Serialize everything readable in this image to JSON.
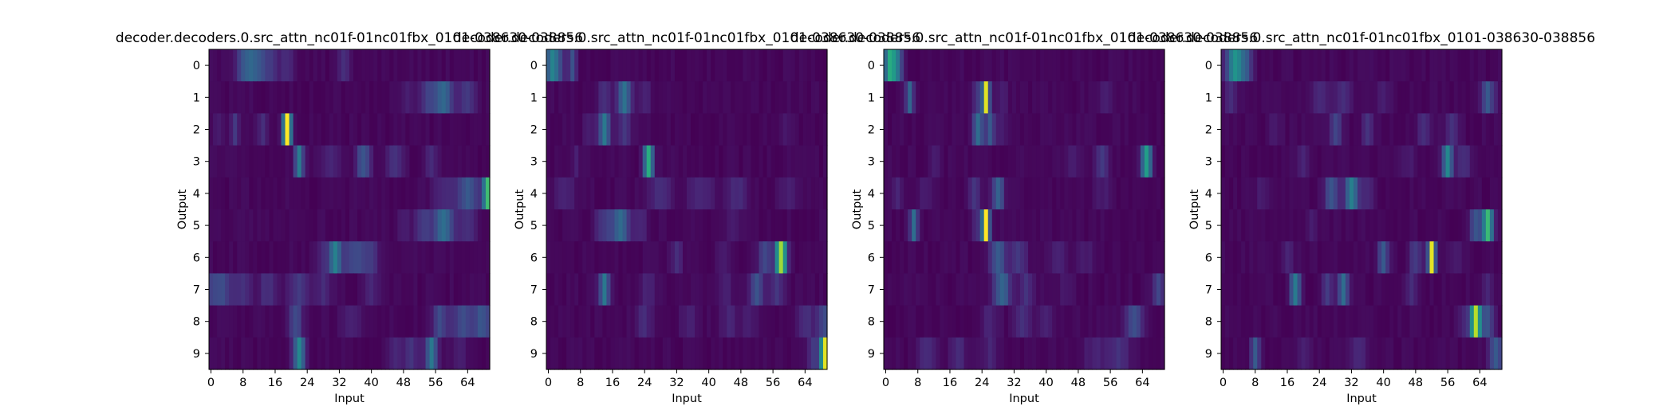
{
  "chart_data": [
    {
      "type": "heatmap",
      "title": "decoder.decoders.0.src_attn_nc01f-01nc01fbx_0101-038630-038856",
      "xlabel": "Input",
      "ylabel": "Output",
      "x_ticks": [
        "0",
        "8",
        "16",
        "24",
        "32",
        "40",
        "48",
        "56",
        "64"
      ],
      "y_ticks": [
        "0",
        "1",
        "2",
        "3",
        "4",
        "5",
        "6",
        "7",
        "8",
        "9"
      ],
      "n_inputs": 70,
      "colormap": "viridis",
      "value_range": [
        0,
        1
      ],
      "rows": [
        {
          "peaks": [
            [
              9,
              0.28,
              1.8
            ],
            [
              12,
              0.18,
              1.5
            ],
            [
              15,
              0.12,
              1.5
            ],
            [
              19,
              0.1,
              1.2
            ],
            [
              33,
              0.1,
              1.2
            ]
          ]
        },
        {
          "peaks": [
            [
              58,
              0.32,
              1.6
            ],
            [
              54,
              0.15,
              1.5
            ],
            [
              64,
              0.15,
              1.5
            ],
            [
              49,
              0.08,
              1.2
            ]
          ]
        },
        {
          "peaks": [
            [
              19,
              1.0,
              0.7
            ],
            [
              6,
              0.15,
              0.8
            ],
            [
              13,
              0.1,
              1.0
            ],
            [
              2,
              0.06,
              1.0
            ]
          ]
        },
        {
          "peaks": [
            [
              22,
              0.38,
              0.8
            ],
            [
              38,
              0.25,
              1.2
            ],
            [
              46,
              0.12,
              1.5
            ],
            [
              55,
              0.12,
              1.0
            ],
            [
              30,
              0.08,
              1.5
            ]
          ]
        },
        {
          "peaks": [
            [
              69,
              0.65,
              0.8
            ],
            [
              64,
              0.25,
              2.2
            ],
            [
              58,
              0.08,
              2.0
            ]
          ]
        },
        {
          "peaks": [
            [
              58,
              0.35,
              1.8
            ],
            [
              53,
              0.15,
              1.5
            ],
            [
              64,
              0.12,
              1.5
            ],
            [
              48,
              0.06,
              1.2
            ]
          ]
        },
        {
          "peaks": [
            [
              31,
              0.4,
              1.2
            ],
            [
              36,
              0.2,
              2.0
            ],
            [
              40,
              0.12,
              1.5
            ],
            [
              28,
              0.08,
              1.0
            ]
          ]
        },
        {
          "peaks": [
            [
              2,
              0.22,
              2.5
            ],
            [
              8,
              0.12,
              1.5
            ],
            [
              14,
              0.12,
              1.5
            ],
            [
              22,
              0.15,
              2.0
            ],
            [
              28,
              0.1,
              1.5
            ],
            [
              40,
              0.08,
              1.5
            ]
          ]
        },
        {
          "peaks": [
            [
              21,
              0.22,
              1.2
            ],
            [
              57,
              0.2,
              1.2
            ],
            [
              63,
              0.2,
              2.5
            ],
            [
              68,
              0.22,
              1.5
            ],
            [
              35,
              0.06,
              2.0
            ]
          ]
        },
        {
          "peaks": [
            [
              22,
              0.45,
              1.0
            ],
            [
              55,
              0.38,
              1.0
            ],
            [
              50,
              0.12,
              1.5
            ],
            [
              46,
              0.08,
              1.2
            ],
            [
              62,
              0.06,
              1.5
            ]
          ]
        }
      ]
    },
    {
      "type": "heatmap",
      "title": "decoder.decoders.0.src_attn_nc01f-01nc01fbx_0101-038630-038856",
      "xlabel": "Input",
      "ylabel": "Output",
      "x_ticks": [
        "0",
        "8",
        "16",
        "24",
        "32",
        "40",
        "48",
        "56",
        "64"
      ],
      "y_ticks": [
        "0",
        "1",
        "2",
        "3",
        "4",
        "5",
        "6",
        "7",
        "8",
        "9"
      ],
      "n_inputs": 70,
      "colormap": "viridis",
      "value_range": [
        0,
        1
      ],
      "rows": [
        {
          "peaks": [
            [
              1,
              0.4,
              1.2
            ],
            [
              6,
              0.22,
              0.7
            ],
            [
              3,
              0.12,
              1.0
            ]
          ]
        },
        {
          "peaks": [
            [
              19,
              0.35,
              1.2
            ],
            [
              14,
              0.12,
              1.2
            ],
            [
              24,
              0.08,
              1.2
            ]
          ]
        },
        {
          "peaks": [
            [
              14,
              0.38,
              1.0
            ],
            [
              19,
              0.15,
              1.2
            ],
            [
              10,
              0.06,
              1.0
            ],
            [
              59,
              0.05,
              1.0
            ]
          ]
        },
        {
          "peaks": [
            [
              25,
              0.62,
              0.8
            ],
            [
              7,
              0.06,
              0.8
            ]
          ]
        },
        {
          "peaks": [
            [
              28,
              0.12,
              2.0
            ],
            [
              47,
              0.1,
              2.0
            ],
            [
              4,
              0.08,
              2.0
            ],
            [
              38,
              0.08,
              2.5
            ],
            [
              60,
              0.08,
              1.5
            ]
          ]
        },
        {
          "peaks": [
            [
              18,
              0.32,
              1.5
            ],
            [
              14,
              0.15,
              1.5
            ],
            [
              23,
              0.1,
              1.2
            ],
            [
              46,
              0.06,
              1.5
            ]
          ]
        },
        {
          "peaks": [
            [
              58,
              0.85,
              0.9
            ],
            [
              54,
              0.2,
              1.2
            ],
            [
              32,
              0.12,
              1.0
            ],
            [
              44,
              0.06,
              1.2
            ]
          ]
        },
        {
          "peaks": [
            [
              14,
              0.38,
              0.9
            ],
            [
              52,
              0.25,
              1.2
            ],
            [
              57,
              0.15,
              1.2
            ],
            [
              25,
              0.08,
              1.5
            ],
            [
              44,
              0.08,
              1.2
            ]
          ]
        },
        {
          "peaks": [
            [
              69,
              0.22,
              1.5
            ],
            [
              64,
              0.12,
              1.5
            ],
            [
              24,
              0.1,
              1.5
            ],
            [
              35,
              0.08,
              1.5
            ],
            [
              45,
              0.08,
              1.5
            ],
            [
              50,
              0.06,
              1.5
            ]
          ]
        },
        {
          "peaks": [
            [
              69,
              0.95,
              0.8
            ],
            [
              66,
              0.15,
              1.0
            ]
          ]
        }
      ]
    },
    {
      "type": "heatmap",
      "title": "decoder.decoders.0.src_attn_nc01f-01nc01fbx_0101-038630-038856",
      "xlabel": "Input",
      "ylabel": "Output",
      "x_ticks": [
        "0",
        "8",
        "16",
        "24",
        "32",
        "40",
        "48",
        "56",
        "64"
      ],
      "y_ticks": [
        "0",
        "1",
        "2",
        "3",
        "4",
        "5",
        "6",
        "7",
        "8",
        "9"
      ],
      "n_inputs": 70,
      "colormap": "viridis",
      "value_range": [
        0,
        1
      ],
      "rows": [
        {
          "peaks": [
            [
              1,
              0.55,
              1.0
            ],
            [
              3,
              0.3,
              1.0
            ]
          ]
        },
        {
          "peaks": [
            [
              25,
              0.92,
              0.6
            ],
            [
              6,
              0.3,
              0.7
            ],
            [
              23,
              0.15,
              0.8
            ],
            [
              29,
              0.08,
              1.0
            ],
            [
              55,
              0.06,
              1.2
            ]
          ]
        },
        {
          "peaks": [
            [
              23,
              0.35,
              0.9
            ],
            [
              26,
              0.25,
              0.9
            ],
            [
              29,
              0.06,
              1.0
            ]
          ]
        },
        {
          "peaks": [
            [
              65,
              0.55,
              0.9
            ],
            [
              54,
              0.15,
              1.2
            ],
            [
              47,
              0.06,
              1.5
            ],
            [
              12,
              0.06,
              1.0
            ]
          ]
        },
        {
          "peaks": [
            [
              28,
              0.3,
              1.0
            ],
            [
              22,
              0.15,
              1.0
            ],
            [
              3,
              0.08,
              1.2
            ],
            [
              10,
              0.06,
              1.2
            ],
            [
              54,
              0.06,
              1.5
            ]
          ]
        },
        {
          "peaks": [
            [
              25,
              1.0,
              0.6
            ],
            [
              7,
              0.35,
              0.7
            ],
            [
              23,
              0.12,
              1.0
            ]
          ]
        },
        {
          "peaks": [
            [
              28,
              0.25,
              1.5
            ],
            [
              33,
              0.15,
              1.5
            ],
            [
              43,
              0.08,
              1.5
            ],
            [
              50,
              0.06,
              1.5
            ]
          ]
        },
        {
          "peaks": [
            [
              29,
              0.3,
              1.5
            ],
            [
              35,
              0.12,
              1.5
            ],
            [
              68,
              0.2,
              1.0
            ],
            [
              45,
              0.06,
              1.5
            ]
          ]
        },
        {
          "peaks": [
            [
              62,
              0.22,
              1.5
            ],
            [
              34,
              0.12,
              1.5
            ],
            [
              40,
              0.08,
              1.5
            ],
            [
              26,
              0.08,
              1.5
            ]
          ]
        },
        {
          "peaks": [
            [
              10,
              0.12,
              1.5
            ],
            [
              18,
              0.1,
              1.5
            ],
            [
              26,
              0.08,
              1.5
            ],
            [
              52,
              0.08,
              2.0
            ],
            [
              58,
              0.12,
              2.0
            ]
          ]
        }
      ]
    },
    {
      "type": "heatmap",
      "title": "decoder.decoders.0.src_attn_nc01f-01nc01fbx_0101-038630-038856",
      "xlabel": "Input",
      "ylabel": "Output",
      "x_ticks": [
        "0",
        "8",
        "16",
        "24",
        "32",
        "40",
        "48",
        "56",
        "64"
      ],
      "y_ticks": [
        "0",
        "1",
        "2",
        "3",
        "4",
        "5",
        "6",
        "7",
        "8",
        "9"
      ],
      "n_inputs": 70,
      "colormap": "viridis",
      "value_range": [
        0,
        1
      ],
      "rows": [
        {
          "peaks": [
            [
              3,
              0.5,
              1.5
            ],
            [
              6,
              0.2,
              1.0
            ]
          ]
        },
        {
          "peaks": [
            [
              66,
              0.25,
              1.2
            ],
            [
              2,
              0.1,
              1.2
            ],
            [
              24,
              0.1,
              1.5
            ],
            [
              30,
              0.12,
              1.5
            ],
            [
              40,
              0.06,
              1.2
            ]
          ]
        },
        {
          "peaks": [
            [
              28,
              0.2,
              1.0
            ],
            [
              36,
              0.12,
              1.0
            ],
            [
              50,
              0.1,
              1.2
            ],
            [
              57,
              0.12,
              1.2
            ],
            [
              13,
              0.06,
              1.2
            ]
          ]
        },
        {
          "peaks": [
            [
              56,
              0.45,
              0.9
            ],
            [
              60,
              0.12,
              1.2
            ],
            [
              20,
              0.08,
              1.2
            ],
            [
              46,
              0.06,
              1.5
            ]
          ]
        },
        {
          "peaks": [
            [
              32,
              0.4,
              1.2
            ],
            [
              27,
              0.25,
              1.2
            ],
            [
              36,
              0.1,
              1.2
            ],
            [
              10,
              0.06,
              1.5
            ]
          ]
        },
        {
          "peaks": [
            [
              66,
              0.65,
              0.9
            ],
            [
              63,
              0.25,
              1.0
            ],
            [
              22,
              0.06,
              1.2
            ]
          ]
        },
        {
          "peaks": [
            [
              52,
              0.95,
              0.6
            ],
            [
              40,
              0.25,
              1.0
            ],
            [
              48,
              0.15,
              1.2
            ],
            [
              16,
              0.08,
              1.0
            ],
            [
              58,
              0.06,
              1.2
            ]
          ]
        },
        {
          "peaks": [
            [
              18,
              0.4,
              0.9
            ],
            [
              30,
              0.35,
              0.9
            ],
            [
              26,
              0.15,
              0.9
            ],
            [
              47,
              0.1,
              1.2
            ],
            [
              66,
              0.08,
              1.2
            ]
          ]
        },
        {
          "peaks": [
            [
              63,
              0.85,
              0.9
            ],
            [
              66,
              0.25,
              1.0
            ],
            [
              60,
              0.08,
              1.2
            ]
          ]
        },
        {
          "peaks": [
            [
              68,
              0.25,
              1.2
            ],
            [
              8,
              0.25,
              0.8
            ],
            [
              34,
              0.1,
              1.5
            ],
            [
              20,
              0.06,
              1.5
            ]
          ]
        }
      ]
    }
  ]
}
